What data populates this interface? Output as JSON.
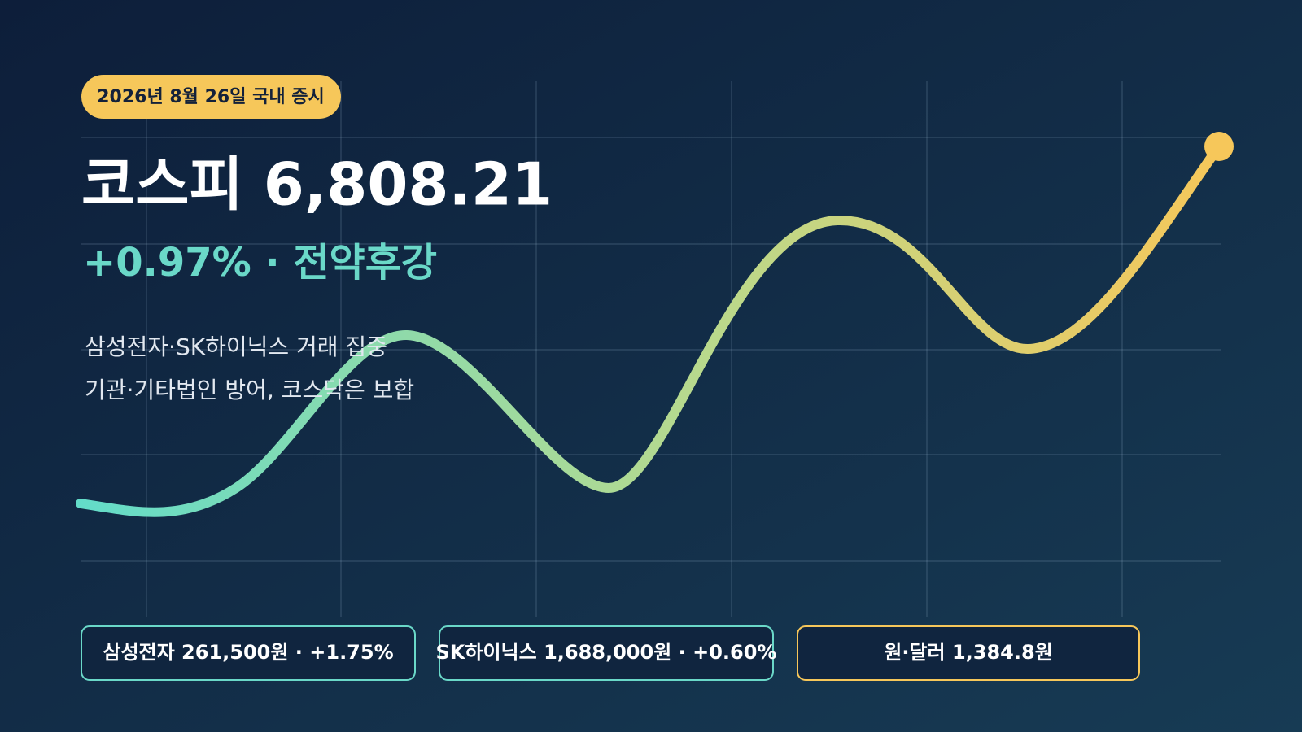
{
  "badge": "2026년 8월 26일 국내 증시",
  "headline": "코스피 6,808.21",
  "change": "+0.97% · 전약후강",
  "notes": [
    "삼성전자·SK하이닉스 거래 집중",
    "기관·기타법인 방어, 코스닥은 보합"
  ],
  "pills": [
    "삼성전자 261,500원 · +1.75%",
    "SK하이닉스 1,688,000원 · +0.60%",
    "원·달러 1,384.8원"
  ]
}
